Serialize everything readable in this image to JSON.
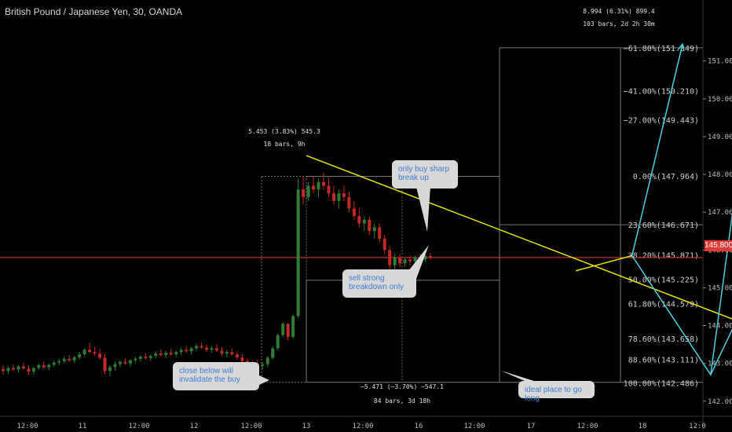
{
  "header": {
    "symbol_title": "British Pound / Japanese Yen, 30, OANDA"
  },
  "colors": {
    "background": "#000000",
    "bull_candle": "#2e7d32",
    "bear_candle": "#c62828",
    "trendline": "#e6e600",
    "projection": "#4dd0e1",
    "fib_line": "#8a8a8a",
    "current_price": "#e53935",
    "callout_bg": "#d8d8d8",
    "callout_text": "#3a7bd5"
  },
  "current_price_label": "145.800",
  "callouts": {
    "buy_break": "only buy sharp break up",
    "sell_breakdown": "sell strong breakdown only",
    "invalidate": "close below will invalidate the buy",
    "ideal_long": "ideal place to go long"
  },
  "measures": {
    "top_range_line1": "5.453 (3.83%) 545.3",
    "top_range_line2": "18 bars, 9h",
    "bottom_range_line1": "−5.471 (−3.70%) −547.1",
    "bottom_range_line2": "84 bars, 3d 18h",
    "target_line1": "8.994 (6.31%) 899.4",
    "target_line2": "103 bars, 2d 2h 30m"
  },
  "chart_data": {
    "type": "candlestick",
    "symbol": "British Pound / Japanese Yen",
    "timeframe": "30",
    "source": "OANDA",
    "ylim": [
      141.6,
      152.2
    ],
    "y_ticks": [
      142.0,
      143.0,
      144.0,
      145.0,
      146.0,
      147.0,
      148.0,
      149.0,
      150.0,
      151.0
    ],
    "y_tick_labels": [
      "142.000",
      "143.000",
      "144.000",
      "145.000",
      "146.000",
      "147.000",
      "148.000",
      "149.000",
      "150.000",
      "151.000"
    ],
    "x_tick_labels": [
      "12:00",
      "11",
      "12:00",
      "12",
      "12:00",
      "13",
      "12:00",
      "16",
      "12:00",
      "17",
      "12:00",
      "18",
      "12:0"
    ],
    "current_price": 145.8,
    "fib_levels": [
      {
        "label": "0.00%(147.964)",
        "value": 147.964
      },
      {
        "label": "23.60%(146.671)",
        "value": 146.671
      },
      {
        "label": "38.20%(145.871)",
        "value": 145.871
      },
      {
        "label": "50.00%(145.225)",
        "value": 145.225
      },
      {
        "label": "61.80%(144.579)",
        "value": 144.579
      },
      {
        "label": "78.60%(143.658)",
        "value": 143.658
      },
      {
        "label": "88.60%(143.111)",
        "value": 143.111
      },
      {
        "label": "100.00%(142.486)",
        "value": 142.486
      },
      {
        "label": "−27.00%(149.443)",
        "value": 149.443
      },
      {
        "label": "−41.00%(150.210)",
        "value": 150.21
      },
      {
        "label": "−61.80%(151.349)",
        "value": 151.349
      }
    ],
    "candles": [
      [
        142.85,
        142.95,
        142.7,
        142.8
      ],
      [
        142.8,
        142.92,
        142.72,
        142.88
      ],
      [
        142.88,
        142.98,
        142.8,
        142.84
      ],
      [
        142.84,
        142.96,
        142.76,
        142.92
      ],
      [
        142.92,
        143.02,
        142.84,
        142.86
      ],
      [
        142.86,
        142.95,
        142.7,
        142.78
      ],
      [
        142.78,
        142.9,
        142.7,
        142.88
      ],
      [
        142.88,
        143.0,
        142.82,
        142.95
      ],
      [
        142.95,
        143.05,
        142.86,
        142.9
      ],
      [
        142.9,
        143.0,
        142.82,
        142.96
      ],
      [
        142.96,
        143.08,
        142.9,
        143.02
      ],
      [
        143.02,
        143.12,
        142.95,
        143.06
      ],
      [
        143.06,
        143.18,
        143.0,
        143.12
      ],
      [
        143.12,
        143.22,
        143.04,
        143.08
      ],
      [
        143.08,
        143.2,
        143.0,
        143.16
      ],
      [
        143.16,
        143.3,
        143.1,
        143.24
      ],
      [
        143.24,
        143.4,
        143.18,
        143.36
      ],
      [
        143.36,
        143.55,
        143.28,
        143.3
      ],
      [
        143.3,
        143.44,
        143.2,
        143.26
      ],
      [
        143.26,
        143.38,
        143.1,
        143.15
      ],
      [
        143.15,
        143.25,
        142.7,
        142.8
      ],
      [
        142.8,
        142.95,
        142.66,
        142.9
      ],
      [
        142.9,
        143.05,
        142.82,
        142.98
      ],
      [
        142.98,
        143.1,
        142.9,
        143.04
      ],
      [
        143.04,
        143.14,
        142.96,
        143.0
      ],
      [
        143.0,
        143.12,
        142.9,
        143.08
      ],
      [
        143.08,
        143.18,
        143.0,
        143.12
      ],
      [
        143.12,
        143.22,
        143.04,
        143.18
      ],
      [
        143.18,
        143.28,
        143.1,
        143.14
      ],
      [
        143.14,
        143.24,
        143.06,
        143.2
      ],
      [
        143.2,
        143.32,
        143.14,
        143.26
      ],
      [
        143.26,
        143.36,
        143.18,
        143.22
      ],
      [
        143.22,
        143.34,
        143.14,
        143.28
      ],
      [
        143.28,
        143.38,
        143.2,
        143.24
      ],
      [
        143.24,
        143.34,
        143.16,
        143.3
      ],
      [
        143.3,
        143.42,
        143.22,
        143.36
      ],
      [
        143.36,
        143.46,
        143.28,
        143.32
      ],
      [
        143.32,
        143.44,
        143.24,
        143.4
      ],
      [
        143.4,
        143.52,
        143.32,
        143.46
      ],
      [
        143.46,
        143.56,
        143.38,
        143.42
      ],
      [
        143.42,
        143.5,
        143.3,
        143.36
      ],
      [
        143.36,
        143.46,
        143.28,
        143.4
      ],
      [
        143.4,
        143.5,
        143.3,
        143.34
      ],
      [
        143.34,
        143.42,
        143.2,
        143.26
      ],
      [
        143.26,
        143.36,
        143.16,
        143.3
      ],
      [
        143.3,
        143.4,
        143.2,
        143.24
      ],
      [
        143.24,
        143.32,
        143.1,
        143.16
      ],
      [
        143.16,
        143.24,
        143.0,
        143.06
      ],
      [
        143.06,
        143.14,
        142.9,
        142.96
      ],
      [
        142.96,
        143.06,
        142.86,
        143.0
      ],
      [
        143.0,
        143.1,
        142.9,
        142.94
      ],
      [
        142.94,
        143.04,
        142.84,
        142.98
      ],
      [
        142.98,
        143.2,
        142.9,
        143.15
      ],
      [
        143.15,
        143.45,
        143.1,
        143.4
      ],
      [
        143.4,
        143.8,
        143.35,
        143.75
      ],
      [
        143.75,
        144.1,
        143.7,
        144.05
      ],
      [
        144.05,
        144.0,
        143.6,
        143.7
      ],
      [
        143.7,
        144.3,
        143.65,
        144.25
      ],
      [
        144.25,
        147.9,
        144.2,
        147.6
      ],
      [
        147.6,
        147.95,
        147.2,
        147.4
      ],
      [
        147.4,
        147.8,
        147.3,
        147.7
      ],
      [
        147.7,
        147.95,
        147.5,
        147.6
      ],
      [
        147.6,
        147.9,
        147.4,
        147.8
      ],
      [
        147.8,
        148.05,
        147.6,
        147.7
      ],
      [
        147.7,
        147.9,
        147.4,
        147.5
      ],
      [
        147.5,
        147.7,
        147.2,
        147.3
      ],
      [
        147.3,
        147.6,
        147.1,
        147.5
      ],
      [
        147.5,
        147.7,
        147.3,
        147.4
      ],
      [
        147.4,
        147.55,
        147.0,
        147.1
      ],
      [
        147.1,
        147.3,
        146.8,
        146.9
      ],
      [
        146.9,
        147.1,
        146.6,
        146.7
      ],
      [
        146.7,
        146.9,
        146.5,
        146.8
      ],
      [
        146.8,
        146.9,
        146.4,
        146.5
      ],
      [
        146.5,
        146.7,
        146.3,
        146.6
      ],
      [
        146.6,
        146.7,
        146.2,
        146.3
      ],
      [
        146.3,
        146.4,
        145.9,
        146.0
      ],
      [
        146.0,
        146.1,
        145.5,
        145.6
      ],
      [
        145.6,
        145.9,
        145.5,
        145.8
      ],
      [
        145.8,
        145.9,
        145.55,
        145.65
      ],
      [
        145.65,
        145.8,
        145.55,
        145.75
      ],
      [
        145.75,
        145.85,
        145.6,
        145.7
      ],
      [
        145.7,
        145.85,
        145.62,
        145.8
      ],
      [
        145.8,
        145.9,
        145.7,
        145.76
      ],
      [
        145.76,
        145.88,
        145.68,
        145.84
      ],
      [
        145.84,
        145.92,
        145.74,
        145.8
      ]
    ],
    "trendlines": [
      {
        "name": "descending resistance",
        "from": [
          13,
          148.5
        ],
        "to": [
          18,
          142.8
        ]
      },
      {
        "name": "rising support",
        "from": [
          15.4,
          145.45
        ],
        "to": [
          15.9,
          145.85
        ]
      }
    ],
    "projection_paths": [
      [
        [
          15.9,
          145.85
        ],
        [
          16.6,
          142.7
        ],
        [
          17.0,
          151.5
        ]
      ],
      [
        [
          15.9,
          145.85
        ],
        [
          16.35,
          151.45
        ]
      ],
      [
        [
          16.6,
          142.7
        ],
        [
          18.0,
          151.4
        ]
      ]
    ]
  }
}
